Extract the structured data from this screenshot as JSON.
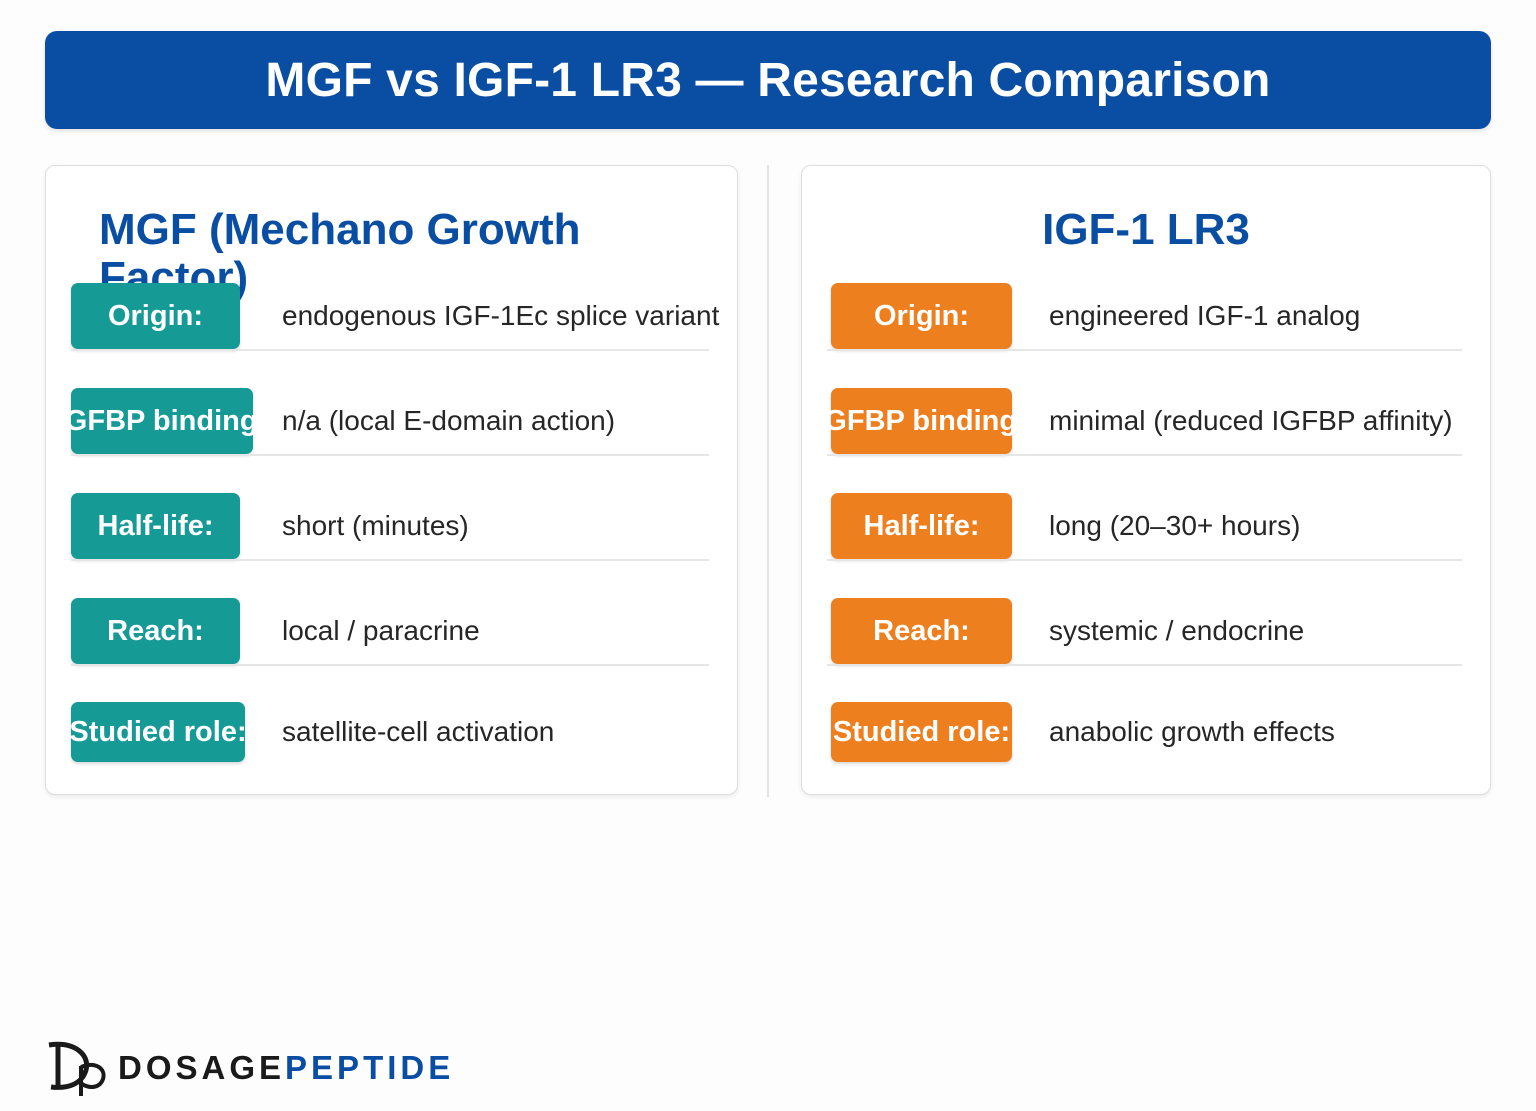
{
  "header": {
    "title": "MGF vs IGF-1 LR3 — Research Comparison"
  },
  "colors": {
    "header_blue": "#0a4ea3",
    "mgf_label": "#159a96",
    "lr3_label": "#ee7f1f"
  },
  "left_card": {
    "title": "MGF (Mechano Growth Factor)",
    "rows": [
      {
        "label": "Origin:",
        "value": "endogenous IGF-1Ec splice variant"
      },
      {
        "label": "IGFBP binding:",
        "value": "n/a (local E-domain action)"
      },
      {
        "label": "Half-life:",
        "value": "short (minutes)"
      },
      {
        "label": "Reach:",
        "value": "local / paracrine"
      },
      {
        "label": "Studied role:",
        "value": "satellite-cell activation"
      }
    ]
  },
  "right_card": {
    "title": "IGF-1 LR3",
    "rows": [
      {
        "label": "Origin:",
        "value": "engineered IGF-1 analog"
      },
      {
        "label": "IGFBP binding:",
        "value": "minimal (reduced IGFBP affinity)"
      },
      {
        "label": "Half-life:",
        "value": "long (20–30+ hours)"
      },
      {
        "label": "Reach:",
        "value": "systemic / endocrine"
      },
      {
        "label": "Studied role:",
        "value": "anabolic growth effects"
      }
    ]
  },
  "footer": {
    "brand_part1": "DOSAGE",
    "brand_part2": "PEPTIDE"
  }
}
